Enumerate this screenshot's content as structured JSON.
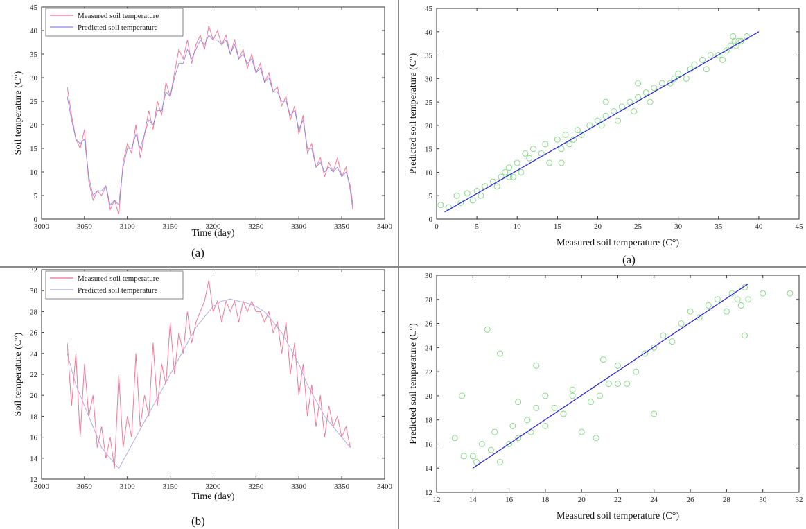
{
  "panels": [
    {
      "caption": "(a)"
    },
    {
      "caption": "(a)"
    },
    {
      "caption": "(b)"
    },
    {
      "caption": ""
    }
  ],
  "colors": {
    "measured": "#f06a8c",
    "predicted": "#8a86e6",
    "scatter": "#7fd77f",
    "fit": "#2a2ad8"
  },
  "chart_data": [
    {
      "type": "line",
      "xlabel": "Time (day)",
      "ylabel": "Soil temperature (C°)",
      "xlim": [
        3000,
        3400
      ],
      "ylim": [
        0,
        45
      ],
      "xticks": [
        3000,
        3050,
        3100,
        3150,
        3200,
        3250,
        3300,
        3350,
        3400
      ],
      "yticks": [
        0,
        5,
        10,
        15,
        20,
        25,
        30,
        35,
        40,
        45
      ],
      "legend_position": "top-left",
      "series": [
        {
          "name": "Measured soil temperature",
          "color": "#f06a8c",
          "x": [
            3030,
            3035,
            3040,
            3045,
            3050,
            3055,
            3060,
            3065,
            3070,
            3075,
            3080,
            3085,
            3090,
            3095,
            3100,
            3105,
            3110,
            3115,
            3120,
            3125,
            3130,
            3135,
            3140,
            3145,
            3150,
            3155,
            3160,
            3165,
            3170,
            3175,
            3180,
            3185,
            3190,
            3195,
            3200,
            3205,
            3210,
            3215,
            3220,
            3225,
            3230,
            3235,
            3240,
            3245,
            3250,
            3255,
            3260,
            3265,
            3270,
            3275,
            3280,
            3285,
            3290,
            3295,
            3300,
            3305,
            3310,
            3315,
            3320,
            3325,
            3330,
            3335,
            3340,
            3345,
            3350,
            3355,
            3360,
            3363
          ],
          "y": [
            28,
            22,
            17,
            15,
            19,
            8,
            4,
            6,
            5,
            7,
            2,
            4,
            1,
            12,
            16,
            14,
            20,
            13,
            18,
            23,
            19,
            25,
            22,
            29,
            26,
            31,
            36,
            34,
            38,
            33,
            37,
            39,
            36,
            41,
            38,
            40,
            37,
            39,
            35,
            38,
            34,
            36,
            32,
            35,
            31,
            33,
            29,
            31,
            27,
            28,
            24,
            26,
            21,
            24,
            18,
            22,
            14,
            16,
            11,
            13,
            9,
            12,
            10,
            13,
            9,
            11,
            6,
            2
          ]
        },
        {
          "name": "Predicted soil temperature",
          "color": "#8a86e6",
          "x": [
            3030,
            3035,
            3040,
            3045,
            3050,
            3055,
            3060,
            3065,
            3070,
            3075,
            3080,
            3085,
            3090,
            3095,
            3100,
            3105,
            3110,
            3115,
            3120,
            3125,
            3130,
            3135,
            3140,
            3145,
            3150,
            3155,
            3160,
            3165,
            3170,
            3175,
            3180,
            3185,
            3190,
            3195,
            3200,
            3205,
            3210,
            3215,
            3220,
            3225,
            3230,
            3235,
            3240,
            3245,
            3250,
            3255,
            3260,
            3265,
            3270,
            3275,
            3280,
            3285,
            3290,
            3295,
            3300,
            3305,
            3310,
            3315,
            3320,
            3325,
            3330,
            3335,
            3340,
            3345,
            3350,
            3355,
            3360,
            3363
          ],
          "y": [
            26,
            21,
            17,
            16,
            17,
            9,
            5,
            6,
            6,
            7,
            3,
            4,
            3,
            11,
            15,
            15,
            18,
            15,
            18,
            21,
            20,
            23,
            23,
            27,
            26,
            30,
            33,
            33,
            36,
            34,
            36,
            38,
            37,
            39,
            38,
            38,
            37,
            38,
            35,
            37,
            34,
            35,
            33,
            34,
            31,
            32,
            29,
            30,
            27,
            27,
            25,
            25,
            22,
            23,
            19,
            21,
            15,
            15,
            11,
            12,
            10,
            11,
            10,
            11,
            9,
            10,
            7,
            3
          ]
        }
      ]
    },
    {
      "type": "scatter",
      "xlabel": "Measured soil temperature (C°)",
      "ylabel": "Predicted soil temperature (C°)",
      "xlim": [
        0,
        45
      ],
      "ylim": [
        0,
        45
      ],
      "xticks": [
        0,
        5,
        10,
        15,
        20,
        25,
        30,
        35,
        40,
        45
      ],
      "yticks": [
        0,
        5,
        10,
        15,
        20,
        25,
        30,
        35,
        40,
        45
      ],
      "points": {
        "x": [
          0.5,
          1.5,
          2.5,
          3,
          3.8,
          4.5,
          5,
          5.5,
          6,
          7,
          7.5,
          8,
          8.5,
          9,
          9.5,
          10,
          10.5,
          11,
          11.5,
          12,
          13,
          13.5,
          14,
          15,
          15.5,
          16,
          16.5,
          17,
          17.5,
          18,
          19,
          20,
          20.5,
          21,
          22,
          22.5,
          23,
          24,
          24.5,
          25,
          26,
          26.5,
          27,
          28,
          29,
          29.5,
          30,
          31,
          31.5,
          32,
          33,
          33.5,
          34,
          35,
          35.5,
          36,
          36.5,
          37,
          37.2,
          37.5,
          36.8,
          37.8,
          38.5,
          21,
          25,
          9,
          15.5
        ],
        "y": [
          3,
          2.5,
          5,
          3.5,
          5.5,
          4,
          6,
          5,
          7,
          8,
          7,
          9,
          10,
          11,
          9,
          12,
          10,
          14,
          13,
          15,
          14,
          16,
          12,
          17,
          15,
          18,
          16,
          17,
          19,
          18,
          20,
          21,
          20,
          22,
          23,
          21,
          24,
          25,
          23,
          26,
          27,
          25,
          28,
          29,
          29,
          30,
          31,
          30,
          32,
          33,
          34,
          32,
          35,
          35,
          34,
          36,
          37,
          38,
          37,
          38,
          39,
          38,
          39,
          25,
          29,
          9,
          12
        ]
      },
      "fit_line": {
        "x": [
          1,
          40
        ],
        "y": [
          1.5,
          40
        ]
      }
    },
    {
      "type": "line",
      "xlabel": "Time (day)",
      "ylabel": "Soil temperature (C°)",
      "xlim": [
        3000,
        3400
      ],
      "ylim": [
        12,
        32
      ],
      "xticks": [
        3000,
        3050,
        3100,
        3150,
        3200,
        3250,
        3300,
        3350,
        3400
      ],
      "yticks": [
        12,
        14,
        16,
        18,
        20,
        22,
        24,
        26,
        28,
        30,
        32
      ],
      "legend_position": "top-left",
      "series": [
        {
          "name": "Measured soil temperature",
          "color": "#f06a8c",
          "x": [
            3030,
            3035,
            3040,
            3045,
            3050,
            3055,
            3060,
            3065,
            3070,
            3075,
            3080,
            3085,
            3090,
            3095,
            3100,
            3105,
            3110,
            3115,
            3120,
            3125,
            3130,
            3135,
            3140,
            3145,
            3150,
            3155,
            3160,
            3165,
            3170,
            3175,
            3180,
            3185,
            3190,
            3195,
            3200,
            3205,
            3210,
            3215,
            3220,
            3225,
            3230,
            3235,
            3240,
            3245,
            3250,
            3255,
            3260,
            3265,
            3270,
            3275,
            3280,
            3285,
            3290,
            3295,
            3300,
            3305,
            3310,
            3315,
            3320,
            3325,
            3330,
            3335,
            3340,
            3345,
            3350,
            3355,
            3360
          ],
          "y": [
            25,
            19,
            24,
            16,
            23,
            18,
            20,
            15,
            17,
            14,
            16,
            13,
            22,
            15,
            18,
            16,
            24,
            17,
            20,
            18,
            25,
            19,
            23,
            21,
            27,
            22,
            26,
            24,
            28,
            25,
            27,
            28,
            29,
            31,
            28,
            29,
            27,
            29,
            28,
            29,
            27,
            29,
            28,
            29,
            28,
            28,
            27,
            28,
            26,
            27,
            24,
            27,
            22,
            25,
            20,
            23,
            18,
            21,
            17,
            20,
            16,
            19,
            17,
            18,
            16,
            17,
            15
          ]
        },
        {
          "name": "Predicted soil temperature",
          "color": "#a6a3dc",
          "x": [
            3030,
            3040,
            3050,
            3060,
            3070,
            3080,
            3090,
            3100,
            3110,
            3120,
            3130,
            3140,
            3150,
            3160,
            3170,
            3180,
            3190,
            3200,
            3210,
            3220,
            3230,
            3240,
            3250,
            3260,
            3270,
            3280,
            3290,
            3300,
            3310,
            3320,
            3330,
            3340,
            3350,
            3360
          ],
          "y": [
            24,
            21,
            19,
            17,
            15,
            14,
            13,
            14.5,
            16,
            17.5,
            19,
            20.5,
            22,
            23.5,
            25,
            26.5,
            27.5,
            28.5,
            29,
            29.2,
            29,
            28.8,
            28.5,
            28,
            27,
            26,
            24.5,
            23,
            21,
            19.5,
            18,
            17,
            16,
            15
          ]
        }
      ]
    },
    {
      "type": "scatter",
      "xlabel": "Measured soil temperature (C°)",
      "ylabel": "Predicted soil temperature (C°)",
      "xlim": [
        12,
        32
      ],
      "ylim": [
        12,
        30
      ],
      "xticks": [
        12,
        14,
        16,
        18,
        20,
        22,
        24,
        26,
        28,
        30,
        32
      ],
      "yticks": [
        12,
        14,
        16,
        18,
        20,
        22,
        24,
        26,
        28,
        30
      ],
      "points": {
        "x": [
          13,
          13.5,
          14,
          14.2,
          14.5,
          15,
          15.2,
          15.5,
          16,
          16.2,
          16.5,
          17,
          17.2,
          17.5,
          18,
          18.5,
          19,
          19.5,
          20,
          20.5,
          21,
          21.5,
          22,
          22.5,
          23,
          23.5,
          24,
          24.5,
          25,
          25.5,
          26,
          26.5,
          27,
          27.5,
          28,
          28.3,
          28.6,
          29,
          29.2,
          28.8,
          29,
          30,
          31.5,
          16.5,
          17.5,
          18,
          19.5,
          21.2,
          22,
          24,
          13.4,
          15.5,
          14.8,
          20.8
        ],
        "y": [
          16.5,
          15,
          15,
          14.5,
          16,
          15.5,
          17,
          14.5,
          16,
          17.5,
          16.5,
          18,
          17,
          19,
          17.5,
          19,
          18.5,
          20,
          17,
          19.5,
          20,
          21,
          22.5,
          21,
          22,
          23.5,
          24,
          25,
          24.5,
          26,
          27,
          26.5,
          27.5,
          28,
          27,
          28.5,
          28,
          29,
          28,
          27.5,
          25,
          28.5,
          28.5,
          19.5,
          22.5,
          20,
          20.5,
          23,
          21,
          18.5,
          20,
          23.5,
          25.5,
          16.5
        ]
      },
      "fit_line": {
        "x": [
          14,
          29.2
        ],
        "y": [
          14,
          29.3
        ]
      }
    }
  ]
}
